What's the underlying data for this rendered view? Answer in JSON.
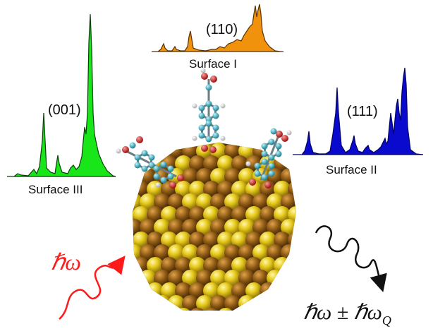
{
  "panels": {
    "surface_i": {
      "miller": "(110)",
      "label": "Surface I",
      "color": "#f0920c"
    },
    "surface_ii": {
      "miller": "(111)",
      "label": "Surface II",
      "color": "#0a0acf"
    },
    "surface_iii": {
      "miller": "(001)",
      "label": "Surface III",
      "color": "#19e619"
    }
  },
  "incident": {
    "text": "ℏω",
    "color": "#ff1a1a"
  },
  "scattered": {
    "text": "ℏω ± ℏω",
    "subscript": "Q",
    "color": "#111111"
  },
  "nanoparticle": {
    "gold_color": "#e0c414",
    "bronze_color": "#8a5a12"
  },
  "molecule_colors": {
    "carbon": "#2aa6b8",
    "oxygen": "#d11f1f",
    "hydrogen": "#ffffff"
  }
}
